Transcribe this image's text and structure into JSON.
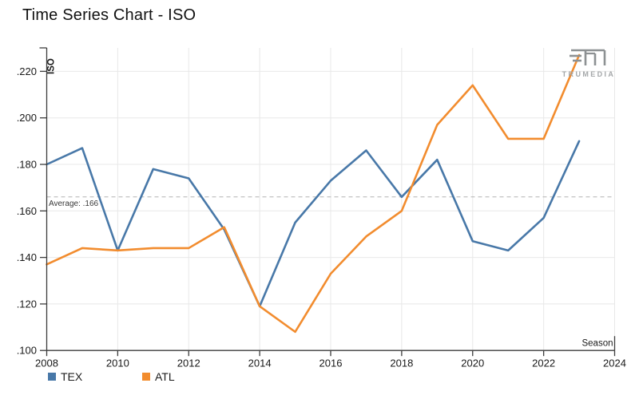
{
  "title": "Time Series Chart - ISO",
  "logo": {
    "text": "TRUMEDIA"
  },
  "legend": [
    {
      "label": "TEX",
      "color": "#4878a8"
    },
    {
      "label": "ATL",
      "color": "#f28c2e"
    }
  ],
  "chart_data": {
    "type": "line",
    "title": "Time Series Chart - ISO",
    "xlabel": "Season",
    "ylabel": "ISO",
    "x": [
      2008,
      2009,
      2010,
      2011,
      2012,
      2013,
      2014,
      2015,
      2016,
      2017,
      2018,
      2019,
      2020,
      2021,
      2022,
      2023
    ],
    "series": [
      {
        "name": "TEX",
        "color": "#4878a8",
        "values": [
          0.18,
          0.187,
          0.143,
          0.178,
          0.174,
          0.152,
          0.119,
          0.155,
          0.173,
          0.186,
          0.166,
          0.182,
          0.147,
          0.143,
          0.157,
          0.19
        ]
      },
      {
        "name": "ATL",
        "color": "#f28c2e",
        "values": [
          0.137,
          0.144,
          0.143,
          0.144,
          0.144,
          0.153,
          0.119,
          0.108,
          0.133,
          0.149,
          0.16,
          0.197,
          0.214,
          0.191,
          0.191,
          0.227
        ]
      }
    ],
    "x_ticks": [
      2008,
      2010,
      2012,
      2014,
      2016,
      2018,
      2020,
      2022,
      2024
    ],
    "x_tick_labels": [
      "2008",
      "2010",
      "2012",
      "2014",
      "2016",
      "2018",
      "2020",
      "2022",
      "2024"
    ],
    "y_tick_values": [
      0.1,
      0.12,
      0.14,
      0.16,
      0.18,
      0.2,
      0.22
    ],
    "y_tick_labels": [
      ".100",
      ".120",
      ".140",
      ".160",
      ".180",
      ".200",
      ".220"
    ],
    "xlim": [
      2008,
      2024
    ],
    "ylim": [
      0.1,
      0.23
    ],
    "grid": true,
    "legend_position": "bottom-left",
    "average": {
      "value": 0.166,
      "label": "Average: .166"
    }
  }
}
